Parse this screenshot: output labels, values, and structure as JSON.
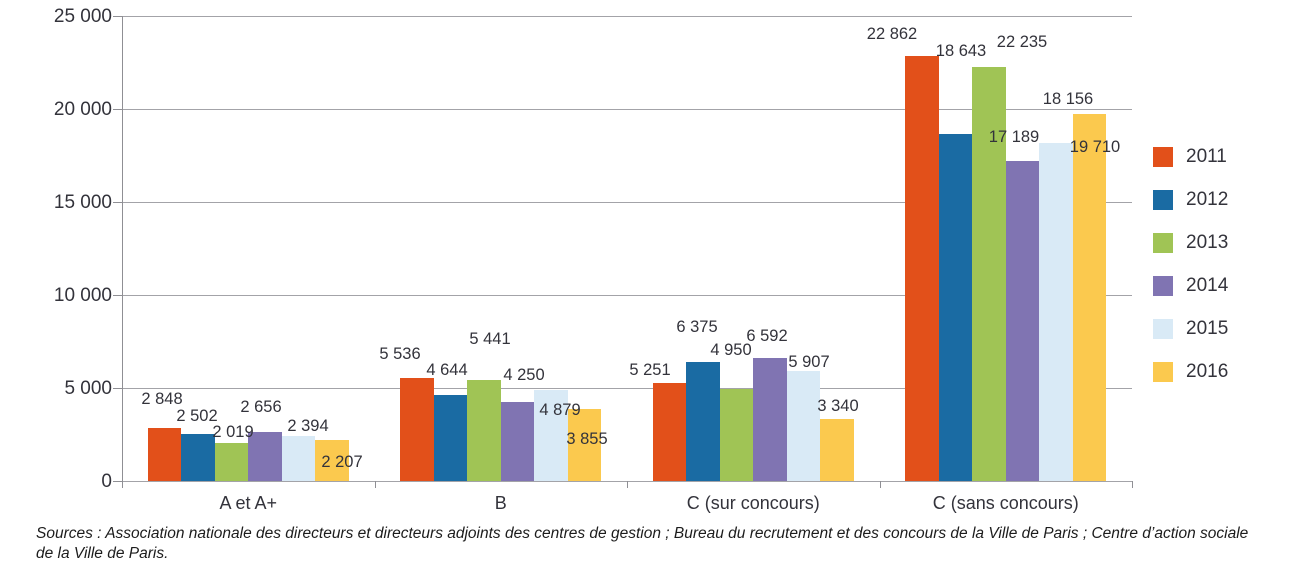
{
  "chart_data": {
    "type": "bar",
    "title": "",
    "xlabel": "",
    "ylabel": "",
    "categories": [
      "A et A+",
      "B",
      "C (sur concours)",
      "C (sans concours)"
    ],
    "series": [
      {
        "name": "2011",
        "color": "#E2501A",
        "values": [
          2848,
          5536,
          5251,
          22862
        ]
      },
      {
        "name": "2012",
        "color": "#1A6BA3",
        "values": [
          2502,
          4644,
          6375,
          18643
        ]
      },
      {
        "name": "2013",
        "color": "#A0C455",
        "values": [
          2019,
          5441,
          4950,
          22235
        ]
      },
      {
        "name": "2014",
        "color": "#8074B2",
        "values": [
          2656,
          4250,
          6592,
          17189
        ]
      },
      {
        "name": "2015",
        "color": "#D9EAF6",
        "values": [
          2394,
          4879,
          5907,
          18156
        ]
      },
      {
        "name": "2016",
        "color": "#FBC94E",
        "values": [
          2207,
          3855,
          3340,
          19710
        ]
      }
    ],
    "ylim": [
      0,
      25000
    ],
    "ytick_step": 5000,
    "ytick_labels": [
      "0",
      "5 000",
      "10 000",
      "15 000",
      "20 000",
      "25 000"
    ],
    "grid": true,
    "legend_position": "right",
    "value_labels": true,
    "value_label_format": "space-thousands"
  },
  "colors": {
    "gridline": "#a3a3a8",
    "axis": "#8f8f94",
    "text": "#33333b"
  },
  "sources": {
    "line1": "Sources : Association nationale des directeurs et directeurs adjoints des centres de gestion ; Bureau du recrutement et des concours de la Ville de Paris ; Centre d’action sociale",
    "line2": "de la Ville de Paris."
  }
}
